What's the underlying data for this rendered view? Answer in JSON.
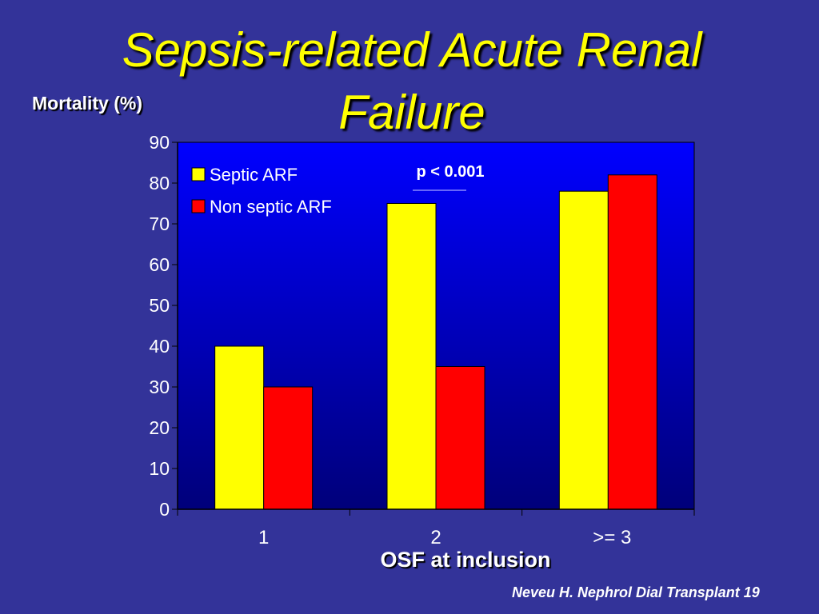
{
  "slide": {
    "title": "Sepsis-related Acute Renal Failure",
    "citation": "Neveu H. Nephrol Dial Transplant 19"
  },
  "colors": {
    "background": "#333399",
    "title": "#ffff00",
    "plot_top": "#0000ff",
    "plot_bottom": "#00007a",
    "septic": "#ffff00",
    "non_septic": "#ff0000"
  },
  "chart_data": {
    "type": "bar",
    "ylabel": "Mortality (%)",
    "xlabel": "OSF at inclusion",
    "categories": [
      "1",
      "2",
      ">= 3"
    ],
    "series": [
      {
        "name": "Septic ARF",
        "values": [
          40,
          75,
          78
        ]
      },
      {
        "name": "Non septic ARF",
        "values": [
          30,
          35,
          82
        ]
      }
    ],
    "ylim": [
      0,
      90
    ],
    "yticks": [
      0,
      10,
      20,
      30,
      40,
      50,
      60,
      70,
      80,
      90
    ],
    "grid": false,
    "legend_position": "top-left",
    "annotation": "p < 0.001"
  }
}
